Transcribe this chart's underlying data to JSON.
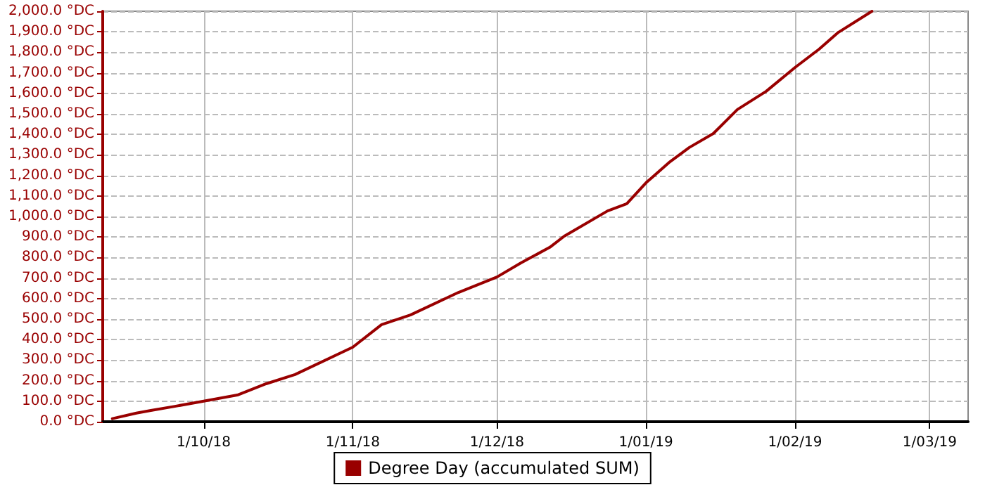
{
  "chart_data": {
    "type": "line",
    "x": [
      "2018-09-12",
      "2018-09-17",
      "2018-09-20",
      "2018-09-25",
      "2018-10-01",
      "2018-10-08",
      "2018-10-14",
      "2018-10-20",
      "2018-11-01",
      "2018-11-07",
      "2018-11-13",
      "2018-11-23",
      "2018-12-01",
      "2018-12-06",
      "2018-12-12",
      "2018-12-15",
      "2018-12-24",
      "2018-12-28",
      "2019-01-01",
      "2019-01-06",
      "2019-01-10",
      "2019-01-15",
      "2019-01-20",
      "2019-01-26",
      "2019-02-01",
      "2019-02-06",
      "2019-02-10",
      "2019-02-17"
    ],
    "series": [
      {
        "name": "Degree Day (accumulated SUM)",
        "color": "#990000",
        "values": [
          15,
          42,
          55,
          75,
          100,
          130,
          185,
          230,
          363,
          473,
          520,
          630,
          705,
          774,
          850,
          904,
          1027,
          1062,
          1164,
          1267,
          1336,
          1404,
          1521,
          1610,
          1726,
          1815,
          1897,
          2000
        ]
      }
    ],
    "xlim": [
      "2018-09-10",
      "2019-03-09"
    ],
    "xticks": [
      {
        "value": "2018-10-01",
        "label": "1/10/18"
      },
      {
        "value": "2018-11-01",
        "label": "1/11/18"
      },
      {
        "value": "2018-12-01",
        "label": "1/12/18"
      },
      {
        "value": "2019-01-01",
        "label": "1/01/19"
      },
      {
        "value": "2019-02-01",
        "label": "1/02/19"
      },
      {
        "value": "2019-03-01",
        "label": "1/03/19"
      }
    ],
    "ylim": [
      0,
      2000
    ],
    "yticks": [
      {
        "value": 0,
        "label": "0.0 °DC"
      },
      {
        "value": 100,
        "label": "100.0 °DC"
      },
      {
        "value": 200,
        "label": "200.0 °DC"
      },
      {
        "value": 300,
        "label": "300.0 °DC"
      },
      {
        "value": 400,
        "label": "400.0 °DC"
      },
      {
        "value": 500,
        "label": "500.0 °DC"
      },
      {
        "value": 600,
        "label": "600.0 °DC"
      },
      {
        "value": 700,
        "label": "700.0 °DC"
      },
      {
        "value": 800,
        "label": "800.0 °DC"
      },
      {
        "value": 900,
        "label": "900.0 °DC"
      },
      {
        "value": 1000,
        "label": "1,000.0 °DC"
      },
      {
        "value": 1100,
        "label": "1,100.0 °DC"
      },
      {
        "value": 1200,
        "label": "1,200.0 °DC"
      },
      {
        "value": 1300,
        "label": "1,300.0 °DC"
      },
      {
        "value": 1400,
        "label": "1,400.0 °DC"
      },
      {
        "value": 1500,
        "label": "1,500.0 °DC"
      },
      {
        "value": 1600,
        "label": "1,600.0 °DC"
      },
      {
        "value": 1700,
        "label": "1,700.0 °DC"
      },
      {
        "value": 1800,
        "label": "1,800.0 °DC"
      },
      {
        "value": 1900,
        "label": "1,900.0 °DC"
      },
      {
        "value": 2000,
        "label": "2,000.0 °DC"
      }
    ],
    "grid": true,
    "legend": "bottom",
    "marker": "none",
    "line_style": "solid"
  }
}
